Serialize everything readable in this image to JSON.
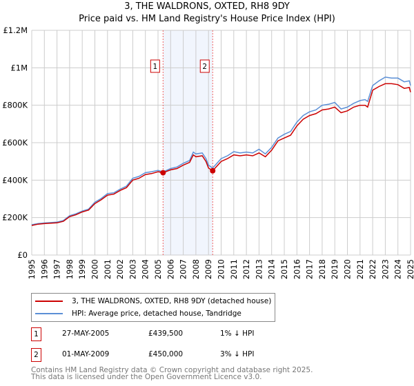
{
  "chart_data": {
    "type": "line",
    "title": "3, THE WALDRONS, OXTED, RH8 9DY",
    "subtitle": "Price paid vs. HM Land Registry's House Price Index (HPI)",
    "xlim": [
      1995,
      2025
    ],
    "ylim": [
      0,
      1200000
    ],
    "y_ticks": [
      {
        "v": 0,
        "label": "£0"
      },
      {
        "v": 200000,
        "label": "£200K"
      },
      {
        "v": 400000,
        "label": "£400K"
      },
      {
        "v": 600000,
        "label": "£600K"
      },
      {
        "v": 800000,
        "label": "£800K"
      },
      {
        "v": 1000000,
        "label": "£1M"
      },
      {
        "v": 1200000,
        "label": "£1.2M"
      }
    ],
    "x_ticks": [
      "1995",
      "1996",
      "1997",
      "1998",
      "1999",
      "2000",
      "2001",
      "2002",
      "2003",
      "2004",
      "2005",
      "2006",
      "2007",
      "2008",
      "2009",
      "2010",
      "2011",
      "2012",
      "2013",
      "2014",
      "2015",
      "2016",
      "2017",
      "2018",
      "2019",
      "2020",
      "2021",
      "2022",
      "2023",
      "2024",
      "2025"
    ],
    "grid": true,
    "shaded_range": [
      2005.4,
      2009.33
    ],
    "series": [
      {
        "name": "3, THE WALDRONS, OXTED, RH8 9DY (detached house)",
        "color": "#cc0000",
        "x": [
          1995,
          1995.5,
          1996,
          1997,
          1997.5,
          1998,
          1998.5,
          1999,
          1999.5,
          2000,
          2000.5,
          2001,
          2001.5,
          2002,
          2002.5,
          2003,
          2003.5,
          2004,
          2004.5,
          2005,
          2005.4,
          2006,
          2006.5,
          2007,
          2007.5,
          2007.8,
          2008,
          2008.5,
          2008.8,
          2009,
          2009.33,
          2009.6,
          2010,
          2010.5,
          2011,
          2011.5,
          2012,
          2012.5,
          2013,
          2013.5,
          2014,
          2014.5,
          2015,
          2015.5,
          2016,
          2016.5,
          2017,
          2017.5,
          2018,
          2018.5,
          2019,
          2019.5,
          2020,
          2020.5,
          2021,
          2021.4,
          2021.6,
          2022,
          2022.5,
          2023,
          2023.5,
          2024,
          2024.5,
          2024.9,
          2025
        ],
        "y": [
          158,
          165,
          168,
          172,
          180,
          205,
          215,
          230,
          240,
          275,
          295,
          320,
          325,
          345,
          360,
          400,
          410,
          430,
          435,
          445,
          439.5,
          455,
          462,
          480,
          495,
          535,
          525,
          530,
          500,
          465,
          450,
          470,
          500,
          515,
          535,
          530,
          535,
          530,
          545,
          525,
          560,
          610,
          625,
          640,
          690,
          725,
          745,
          755,
          775,
          780,
          790,
          760,
          770,
          790,
          800,
          800,
          790,
          880,
          900,
          915,
          915,
          910,
          890,
          895,
          870
        ]
      },
      {
        "name": "HPI: Average price, detached house, Tandridge",
        "color": "#5b8fd6",
        "x": [
          1995,
          1995.5,
          1996,
          1997,
          1997.5,
          1998,
          1998.5,
          1999,
          1999.5,
          2000,
          2000.5,
          2001,
          2001.5,
          2002,
          2002.5,
          2003,
          2003.5,
          2004,
          2004.5,
          2005,
          2005.4,
          2006,
          2006.5,
          2007,
          2007.5,
          2007.8,
          2008,
          2008.5,
          2008.8,
          2009,
          2009.33,
          2009.6,
          2010,
          2010.5,
          2011,
          2011.5,
          2012,
          2012.5,
          2013,
          2013.5,
          2014,
          2014.5,
          2015,
          2015.5,
          2016,
          2016.5,
          2017,
          2017.5,
          2018,
          2018.5,
          2019,
          2019.5,
          2020,
          2020.5,
          2021,
          2021.4,
          2021.6,
          2022,
          2022.5,
          2023,
          2023.5,
          2024,
          2024.5,
          2024.9,
          2025
        ],
        "y": [
          162,
          168,
          171,
          176,
          184,
          210,
          220,
          235,
          245,
          282,
          302,
          328,
          332,
          352,
          368,
          410,
          420,
          440,
          445,
          452,
          444,
          462,
          470,
          490,
          505,
          550,
          540,
          545,
          515,
          480,
          464,
          485,
          515,
          530,
          552,
          545,
          550,
          545,
          565,
          540,
          575,
          625,
          645,
          660,
          710,
          745,
          765,
          775,
          800,
          805,
          815,
          780,
          790,
          810,
          825,
          830,
          820,
          905,
          930,
          950,
          945,
          945,
          925,
          930,
          905
        ]
      }
    ],
    "markers": [
      {
        "label": "1",
        "x": 2005.4,
        "y": 439500
      },
      {
        "label": "2",
        "x": 2009.33,
        "y": 450000
      }
    ]
  },
  "legend": {
    "property": "3, THE WALDRONS, OXTED, RH8 9DY (detached house)",
    "hpi": "HPI: Average price, detached house, Tandridge"
  },
  "transactions": [
    {
      "num": "1",
      "date": "27-MAY-2005",
      "price": "£439,500",
      "delta": "1% ↓ HPI"
    },
    {
      "num": "2",
      "date": "01-MAY-2009",
      "price": "£450,000",
      "delta": "3% ↓ HPI"
    }
  ],
  "footer": {
    "line1": "Contains HM Land Registry data © Crown copyright and database right 2025.",
    "line2": "This data is licensed under the Open Government Licence v3.0."
  }
}
